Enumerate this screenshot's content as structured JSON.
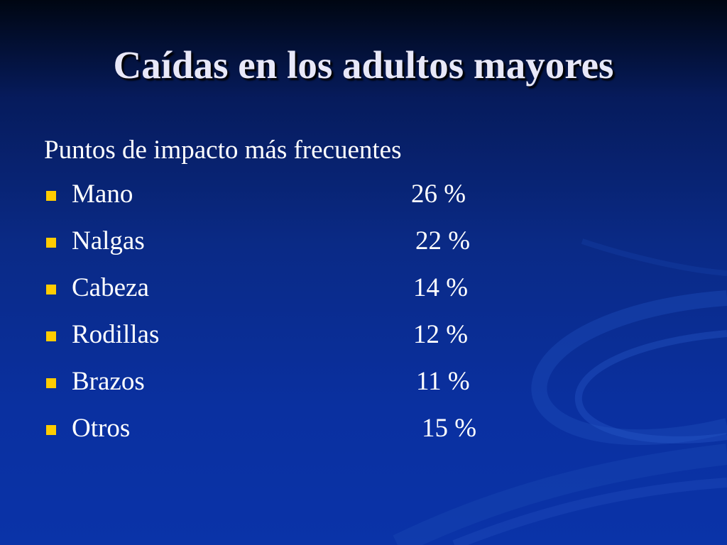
{
  "slide": {
    "title": "Caídas en los adultos mayores",
    "subtitle": "Puntos de impacto más frecuentes",
    "bullet_color": "#ffcc00",
    "background_color": "#0a2a86",
    "items": [
      {
        "label": "Mano",
        "value": "26 %"
      },
      {
        "label": "Nalgas",
        "value": "22 %"
      },
      {
        "label": "Cabeza",
        "value": "14 %"
      },
      {
        "label": "Rodillas",
        "value": "12 %"
      },
      {
        "label": "Brazos",
        "value": "11 %"
      },
      {
        "label": "Otros",
        "value": "15 %"
      }
    ]
  }
}
